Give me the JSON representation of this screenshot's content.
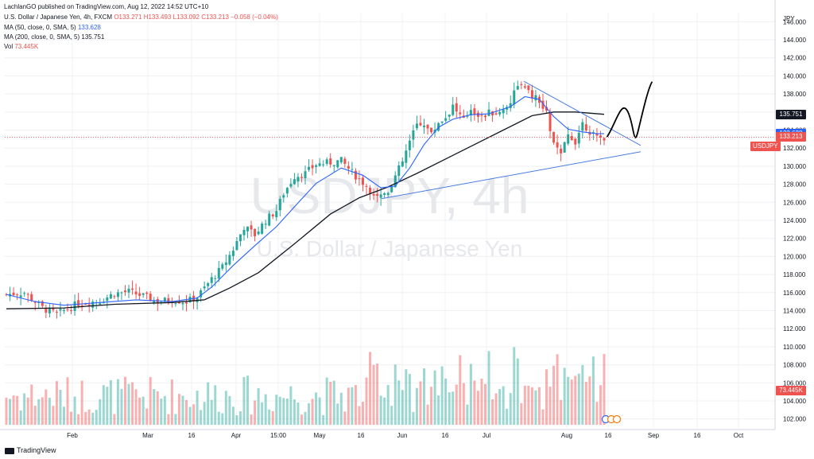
{
  "header": {
    "published": "LachlanGO published on TradingView.com, Aug 12, 2022 14:52 UTC+10",
    "instrument": "U.S. Dollar / Japanese Yen, 4h, FXCM",
    "ohlc": {
      "o": "O133.271",
      "h": "H133.493",
      "l": "L133.092",
      "c": "C133.213",
      "chg": "−0.058 (−0.04%)"
    },
    "ma50_label": "MA (50, close, 0, SMA, 5)",
    "ma50_value": "133.628",
    "ma200_label": "MA (200, close, 0, SMA, 5)",
    "ma200_value": "135.751",
    "vol_label": "Vol",
    "vol_value": "73.445K"
  },
  "watermark": {
    "symbol": "USDJPY, 4h",
    "name": "U.S. Dollar / Japanese Yen"
  },
  "footer": {
    "brand": "TradingView"
  },
  "colors": {
    "up": "#26a69a",
    "down": "#ef5350",
    "ma50": "#2962ff",
    "ma200": "#131722",
    "trendline": "#4a7de0",
    "projection": "#000000",
    "grid": "#eef0f3"
  },
  "chart_data": {
    "type": "candlestick",
    "symbol": "USDJPY",
    "timeframe": "4h",
    "currency_label": "JPY",
    "x_tick_labels": [
      "Feb",
      "Mar",
      "16",
      "Apr",
      "15:00",
      "May",
      "16",
      "Jun",
      "16",
      "Jul",
      "Aug",
      "16",
      "Sep",
      "16",
      "Oct"
    ],
    "y_ticks": [
      102,
      104,
      106,
      108,
      110,
      112,
      114,
      116,
      118,
      120,
      122,
      124,
      126,
      128,
      130,
      132,
      134,
      136,
      138,
      140,
      142,
      144,
      146
    ],
    "ylim": [
      101,
      147
    ],
    "price_labels": [
      {
        "name": "MA (200)",
        "value": 135.751,
        "text": "135.751",
        "color": "#131722"
      },
      {
        "name": "MA (50)",
        "value": 133.628,
        "text": "133.628",
        "color": "#2962ff"
      },
      {
        "name": "USDJPY",
        "value": 133.213,
        "text": "133.213",
        "color": "#ef5350"
      }
    ],
    "volume_label": {
      "text": "73.445K",
      "color": "#ef5350"
    },
    "series": [
      {
        "name": "USDJPY close (approx.)",
        "values": [
          [
            0,
            115.8
          ],
          [
            5,
            116.0
          ],
          [
            10,
            114.3
          ],
          [
            14,
            113.6
          ],
          [
            20,
            114.8
          ],
          [
            26,
            115.1
          ],
          [
            30,
            115.9
          ],
          [
            34,
            116.1
          ],
          [
            38,
            115.6
          ],
          [
            42,
            115.0
          ],
          [
            46,
            115.2
          ],
          [
            50,
            115.0
          ],
          [
            53,
            115.5
          ],
          [
            57,
            117.5
          ],
          [
            60,
            118.8
          ],
          [
            63,
            120.8
          ],
          [
            66,
            123.3
          ],
          [
            69,
            122.4
          ],
          [
            72,
            124.0
          ],
          [
            75,
            125.1
          ],
          [
            77,
            127.0
          ],
          [
            80,
            128.9
          ],
          [
            83,
            129.2
          ],
          [
            86,
            130.2
          ],
          [
            90,
            130.4
          ],
          [
            93,
            130.6
          ],
          [
            96,
            129.3
          ],
          [
            99,
            128.2
          ],
          [
            102,
            127.0
          ],
          [
            104,
            126.8
          ],
          [
            106,
            127.3
          ],
          [
            108,
            128.9
          ],
          [
            110,
            130.5
          ],
          [
            112,
            132.7
          ],
          [
            114,
            134.6
          ],
          [
            116,
            134.8
          ],
          [
            118,
            133.5
          ],
          [
            120,
            134.9
          ],
          [
            122,
            135.4
          ],
          [
            124,
            136.7
          ],
          [
            127,
            135.0
          ],
          [
            129,
            136.4
          ],
          [
            132,
            135.4
          ],
          [
            134,
            135.9
          ],
          [
            137,
            135.9
          ],
          [
            140,
            137.2
          ],
          [
            142,
            139.2
          ],
          [
            144,
            138.4
          ],
          [
            147,
            137.5
          ],
          [
            150,
            135.8
          ],
          [
            152,
            132.4
          ],
          [
            154,
            131.2
          ],
          [
            156,
            133.4
          ],
          [
            158,
            132.8
          ],
          [
            160,
            134.8
          ],
          [
            162,
            133.9
          ],
          [
            164,
            133.0
          ],
          [
            166,
            133.2
          ]
        ]
      },
      {
        "name": "MA (50)",
        "values": [
          [
            0,
            115.8
          ],
          [
            8,
            115.0
          ],
          [
            16,
            114.6
          ],
          [
            26,
            114.9
          ],
          [
            36,
            115.2
          ],
          [
            46,
            115.0
          ],
          [
            53,
            115.4
          ],
          [
            57,
            116.6
          ],
          [
            63,
            119.0
          ],
          [
            69,
            121.2
          ],
          [
            75,
            123.3
          ],
          [
            80,
            125.5
          ],
          [
            86,
            128.1
          ],
          [
            93,
            129.8
          ],
          [
            99,
            129.0
          ],
          [
            104,
            127.6
          ],
          [
            108,
            127.8
          ],
          [
            112,
            129.8
          ],
          [
            116,
            132.4
          ],
          [
            120,
            134.3
          ],
          [
            124,
            135.2
          ],
          [
            129,
            135.7
          ],
          [
            134,
            135.8
          ],
          [
            140,
            136.6
          ],
          [
            144,
            137.7
          ],
          [
            148,
            137.4
          ],
          [
            152,
            135.5
          ],
          [
            156,
            134.1
          ],
          [
            160,
            133.8
          ],
          [
            164,
            133.6
          ],
          [
            166,
            133.6
          ]
        ]
      },
      {
        "name": "MA (200)",
        "values": [
          [
            0,
            114.2
          ],
          [
            16,
            114.3
          ],
          [
            30,
            114.7
          ],
          [
            46,
            114.9
          ],
          [
            55,
            115.2
          ],
          [
            62,
            116.5
          ],
          [
            70,
            118.2
          ],
          [
            80,
            121.4
          ],
          [
            90,
            124.7
          ],
          [
            98,
            126.5
          ],
          [
            106,
            127.7
          ],
          [
            114,
            129.2
          ],
          [
            122,
            130.8
          ],
          [
            130,
            132.4
          ],
          [
            138,
            134.0
          ],
          [
            146,
            135.6
          ],
          [
            152,
            136.0
          ],
          [
            158,
            136.0
          ],
          [
            166,
            135.75
          ]
        ]
      }
    ],
    "volume": {
      "unit": "K",
      "last": 73.445
    }
  }
}
